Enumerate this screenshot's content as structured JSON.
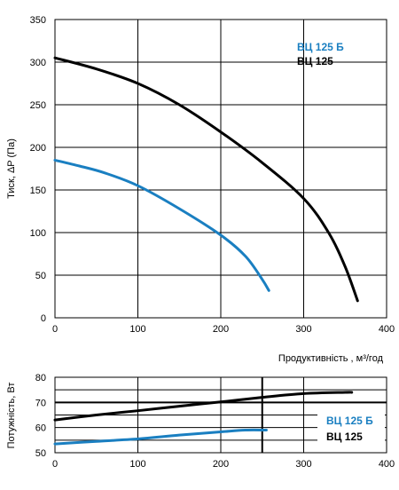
{
  "chart_data": [
    {
      "type": "line",
      "ylabel": "Тиск, ΔP (Па)",
      "xlabel": "Продуктивність , м³/год",
      "xlim": [
        0,
        400
      ],
      "ylim": [
        0,
        350
      ],
      "x_ticks": [
        "0",
        "100",
        "200",
        "300",
        "400"
      ],
      "y_ticks": [
        "0",
        "50",
        "100",
        "150",
        "200",
        "250",
        "300",
        "350"
      ],
      "grid": true,
      "legend_position": "top-right",
      "series": [
        {
          "name": "ВЦ 125 Б",
          "color": "#1a7fc1",
          "x": [
            0,
            30,
            60,
            100,
            150,
            200,
            230,
            250,
            258
          ],
          "y": [
            185,
            178,
            170,
            155,
            128,
            97,
            72,
            45,
            32
          ]
        },
        {
          "name": "ВЦ 125",
          "color": "#000000",
          "x": [
            0,
            50,
            100,
            150,
            200,
            250,
            300,
            330,
            350,
            365
          ],
          "y": [
            305,
            292,
            275,
            250,
            218,
            182,
            140,
            100,
            60,
            20
          ]
        }
      ]
    },
    {
      "type": "line",
      "ylabel": "Потужність, Вт",
      "xlim": [
        0,
        400
      ],
      "ylim": [
        50,
        80
      ],
      "x_ticks": [
        "0",
        "100",
        "200",
        "300",
        "400"
      ],
      "y_ticks": [
        "50",
        "60",
        "70",
        "80"
      ],
      "grid": true,
      "legend_position": "right",
      "marker_x": 250,
      "series": [
        {
          "name": "ВЦ 125 Б",
          "color": "#1a7fc1",
          "x": [
            0,
            50,
            100,
            150,
            200,
            230,
            255
          ],
          "y": [
            53.5,
            54.5,
            55.5,
            57,
            58.3,
            59,
            59
          ]
        },
        {
          "name": "ВЦ 125",
          "color": "#000000",
          "x": [
            0,
            50,
            100,
            150,
            200,
            250,
            300,
            350,
            358
          ],
          "y": [
            63,
            65,
            66.7,
            68.5,
            70.2,
            72,
            73.5,
            74,
            74
          ]
        }
      ]
    }
  ]
}
